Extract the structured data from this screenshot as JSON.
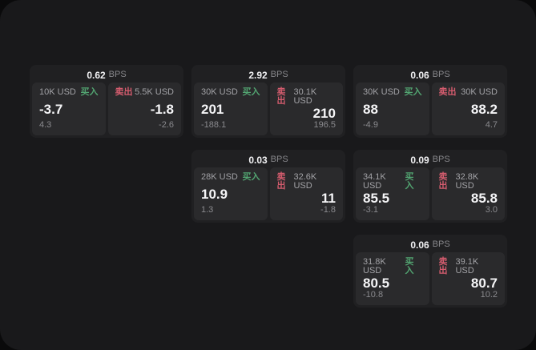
{
  "theme": {
    "backdrop": "#0a0a0b",
    "surface": "#19191b",
    "card_bg": "#202022",
    "panel_bg": "#2a2a2c",
    "text_primary": "#f5f5f7",
    "text_secondary": "#a2a2a6",
    "text_muted": "#8a8a8e",
    "buy_color": "#52a471",
    "sell_color": "#d45c6e"
  },
  "labels": {
    "bps_unit": "BPS",
    "buy": "买入",
    "sell": "卖出"
  },
  "cards": [
    {
      "col": 1,
      "row": 1,
      "bps": "0.62",
      "buy": {
        "size": "10K USD",
        "value": "-3.7",
        "sub": "4.3"
      },
      "sell": {
        "size": "5.5K USD",
        "value": "-1.8",
        "sub": "-2.6"
      }
    },
    {
      "col": 2,
      "row": 1,
      "bps": "2.92",
      "buy": {
        "size": "30K USD",
        "value": "201",
        "sub": "-188.1"
      },
      "sell": {
        "size": "30.1K USD",
        "value": "210",
        "sub": "196.5"
      }
    },
    {
      "col": 3,
      "row": 1,
      "bps": "0.06",
      "buy": {
        "size": "30K USD",
        "value": "88",
        "sub": "-4.9"
      },
      "sell": {
        "size": "30K USD",
        "value": "88.2",
        "sub": "4.7"
      }
    },
    {
      "col": 2,
      "row": 2,
      "bps": "0.03",
      "buy": {
        "size": "28K USD",
        "value": "10.9",
        "sub": "1.3"
      },
      "sell": {
        "size": "32.6K USD",
        "value": "11",
        "sub": "-1.8"
      }
    },
    {
      "col": 3,
      "row": 2,
      "bps": "0.09",
      "buy": {
        "size": "34.1K USD",
        "value": "85.5",
        "sub": "-3.1"
      },
      "sell": {
        "size": "32.8K USD",
        "value": "85.8",
        "sub": "3.0"
      }
    },
    {
      "col": 3,
      "row": 3,
      "bps": "0.06",
      "buy": {
        "size": "31.8K USD",
        "value": "80.5",
        "sub": "-10.8"
      },
      "sell": {
        "size": "39.1K USD",
        "value": "80.7",
        "sub": "10.2"
      }
    }
  ]
}
